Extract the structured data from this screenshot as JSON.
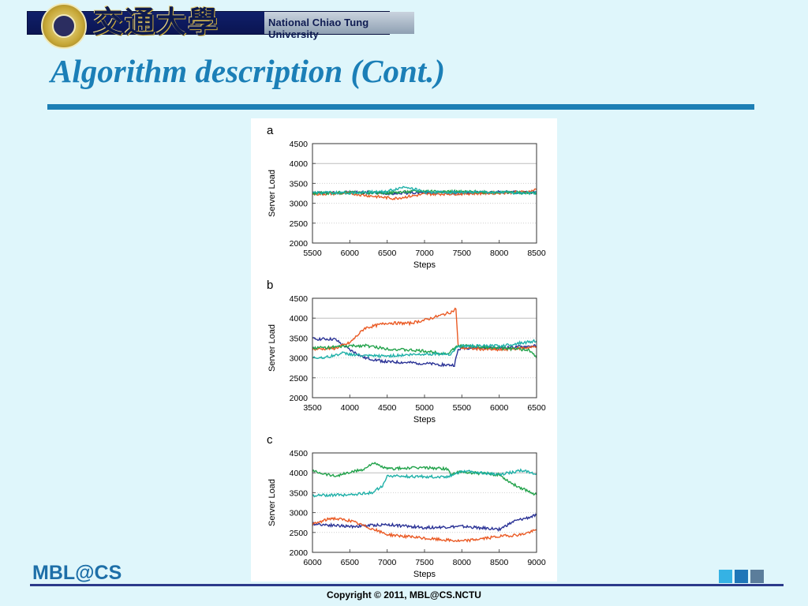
{
  "header": {
    "banner_text": "National Chiao Tung University",
    "chinese_logo": "交通大學"
  },
  "slide": {
    "title": "Algorithm description (Cont.)"
  },
  "footer": {
    "logo": "MBL@CS",
    "copyright": "Copyright © 2011, MBL@CS.NCTU"
  },
  "colors": {
    "title": "#1b7fb7",
    "background": "#dff6fb",
    "series_blue": "#2b3396",
    "series_orange": "#ea5a24",
    "series_green": "#21a24a",
    "series_teal": "#1fb0a8"
  },
  "chart_data": [
    {
      "type": "line",
      "panel": "a",
      "xlabel": "Steps",
      "ylabel": "Server Load",
      "xlim": [
        5500,
        8500
      ],
      "ylim": [
        2000,
        4500
      ],
      "xticks": [
        "5500",
        "6000",
        "6500",
        "7000",
        "7500",
        "8000",
        "8500"
      ],
      "yticks": [
        "2000",
        "2500",
        "3000",
        "3500",
        "4000",
        "4500"
      ],
      "grid": "horizontal",
      "series": [
        {
          "color": "#2b3396",
          "x": [
            5500,
            6000,
            6500,
            7000,
            7500,
            8000,
            8500
          ],
          "values": [
            3260,
            3280,
            3250,
            3270,
            3260,
            3280,
            3270
          ]
        },
        {
          "color": "#ea5a24",
          "x": [
            5500,
            6000,
            6300,
            6600,
            7000,
            7500,
            8000,
            8400,
            8500
          ],
          "values": [
            3230,
            3250,
            3180,
            3120,
            3230,
            3240,
            3260,
            3290,
            3350
          ]
        },
        {
          "color": "#21a24a",
          "x": [
            5500,
            6000,
            6500,
            7000,
            7500,
            8000,
            8500
          ],
          "values": [
            3250,
            3270,
            3260,
            3310,
            3290,
            3280,
            3250
          ]
        },
        {
          "color": "#1fb0a8",
          "x": [
            5500,
            6000,
            6500,
            6750,
            7000,
            7500,
            8000,
            8500
          ],
          "values": [
            3270,
            3260,
            3300,
            3420,
            3280,
            3280,
            3270,
            3260
          ]
        }
      ]
    },
    {
      "type": "line",
      "panel": "b",
      "xlabel": "Steps",
      "ylabel": "Server Load",
      "xlim": [
        3500,
        6500
      ],
      "ylim": [
        2000,
        4500
      ],
      "xticks": [
        "3500",
        "4000",
        "4500",
        "5000",
        "5500",
        "6000",
        "6500"
      ],
      "yticks": [
        "2000",
        "2500",
        "3000",
        "3500",
        "4000",
        "4500"
      ],
      "grid": "horizontal",
      "series": [
        {
          "color": "#2b3396",
          "x": [
            3500,
            3800,
            4000,
            4200,
            4500,
            4800,
            5000,
            5300,
            5400,
            5450,
            5500,
            6000,
            6500
          ],
          "values": [
            3480,
            3470,
            3200,
            3000,
            2900,
            2880,
            2860,
            2820,
            2820,
            3200,
            3250,
            3250,
            3300
          ]
        },
        {
          "color": "#ea5a24",
          "x": [
            3500,
            3800,
            4000,
            4200,
            4500,
            4800,
            5000,
            5200,
            5350,
            5400,
            5420,
            5450,
            5500,
            6000,
            6500
          ],
          "values": [
            3220,
            3240,
            3380,
            3750,
            3880,
            3870,
            3950,
            4060,
            4150,
            4200,
            4250,
            3300,
            3250,
            3200,
            3280
          ]
        },
        {
          "color": "#21a24a",
          "x": [
            3500,
            3800,
            4000,
            4200,
            4500,
            5000,
            5300,
            5450,
            5500,
            6000,
            6400,
            6500
          ],
          "values": [
            3250,
            3270,
            3300,
            3310,
            3230,
            3170,
            3100,
            3300,
            3310,
            3250,
            3200,
            3000
          ]
        },
        {
          "color": "#1fb0a8",
          "x": [
            3500,
            3700,
            3900,
            4200,
            4500,
            5000,
            5350,
            5450,
            5500,
            6000,
            6500
          ],
          "values": [
            3000,
            3020,
            3120,
            3050,
            3050,
            3100,
            3100,
            3290,
            3300,
            3300,
            3430
          ]
        }
      ]
    },
    {
      "type": "line",
      "panel": "c",
      "xlabel": "Steps",
      "ylabel": "Server Load",
      "xlim": [
        6000,
        9000
      ],
      "ylim": [
        2000,
        4500
      ],
      "xticks": [
        "6000",
        "6500",
        "7000",
        "7500",
        "8000",
        "8500",
        "9000"
      ],
      "yticks": [
        "2000",
        "2500",
        "3000",
        "3500",
        "4000",
        "4500"
      ],
      "grid": "horizontal",
      "series": [
        {
          "color": "#2b3396",
          "x": [
            6000,
            6500,
            7000,
            7500,
            8000,
            8500,
            8700,
            9000
          ],
          "values": [
            2720,
            2650,
            2700,
            2620,
            2650,
            2580,
            2780,
            2930
          ]
        },
        {
          "color": "#ea5a24",
          "x": [
            6000,
            6250,
            6500,
            7000,
            7500,
            8000,
            8500,
            8800,
            9000
          ],
          "values": [
            2700,
            2860,
            2800,
            2450,
            2350,
            2280,
            2400,
            2450,
            2560
          ]
        },
        {
          "color": "#21a24a",
          "x": [
            6000,
            6300,
            6700,
            6800,
            7000,
            7500,
            7800,
            7850,
            8000,
            8500,
            8700,
            9000
          ],
          "values": [
            4050,
            3920,
            4100,
            4250,
            4100,
            4130,
            4100,
            3970,
            4020,
            3950,
            3700,
            3450
          ]
        },
        {
          "color": "#1fb0a8",
          "x": [
            6000,
            6500,
            6800,
            6950,
            7000,
            7500,
            7800,
            8000,
            8500,
            8800,
            9000
          ],
          "values": [
            3430,
            3450,
            3500,
            3700,
            3920,
            3900,
            3900,
            4050,
            3950,
            4060,
            3980
          ]
        }
      ]
    }
  ]
}
